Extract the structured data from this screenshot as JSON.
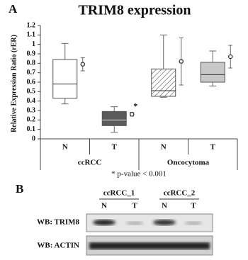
{
  "panel_a": "A",
  "chart_data": {
    "type": "box",
    "title": "TRIM8 expression",
    "y_label": "Relative Expression Ratio (rER)",
    "categories": [
      "N",
      "T",
      "N",
      "T"
    ],
    "groups": [
      "ccRCC",
      "Oncocytoma"
    ],
    "ylim": [
      0,
      1.2
    ],
    "yticks": [
      0,
      0.1,
      0.2,
      0.3,
      0.4,
      0.5,
      0.6,
      0.7,
      0.8,
      0.9,
      1,
      1.1,
      1.2
    ],
    "grid": false,
    "boxes": [
      {
        "min": 0.37,
        "q1": 0.43,
        "median": 0.58,
        "q3": 0.84,
        "max": 1.01,
        "mean": 0.79,
        "error": 0.07,
        "fill": "#ffffff"
      },
      {
        "min": 0.07,
        "q1": 0.14,
        "median": 0.2,
        "q3": 0.29,
        "max": 0.34,
        "mean": 0.26,
        "error": 0.02,
        "fill": "#5a5a5a",
        "annotation": "*"
      },
      {
        "min": 0.44,
        "q1": 0.45,
        "median": 0.51,
        "q3": 0.74,
        "max": 1.1,
        "mean": 0.82,
        "error": 0.25,
        "fill": "hatch"
      },
      {
        "min": 0.56,
        "q1": 0.6,
        "median": 0.68,
        "q3": 0.81,
        "max": 0.93,
        "mean": 0.87,
        "error": 0.12,
        "fill": "#c8c8c8"
      }
    ],
    "footnote": "* p-value < 0.001"
  },
  "blot": {
    "panel": "B",
    "samples": [
      "ccRCC_1",
      "ccRCC_2"
    ],
    "lanes": [
      "N",
      "T",
      "N",
      "T"
    ],
    "rows": [
      "WB: TRIM8",
      "WB: ACTIN"
    ]
  }
}
